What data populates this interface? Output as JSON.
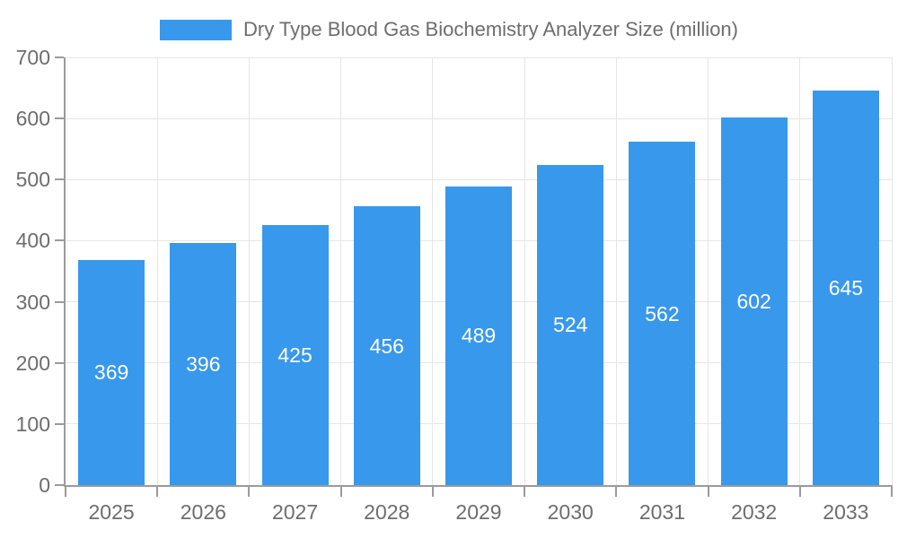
{
  "legend": {
    "items": [
      {
        "label": "Dry Type Blood Gas Biochemistry Analyzer Size (million)",
        "color": "#3898EC"
      }
    ]
  },
  "chart_data": {
    "type": "bar",
    "title": "Dry Type Blood Gas Biochemistry Analyzer Size (million)",
    "categories": [
      "2025",
      "2026",
      "2027",
      "2028",
      "2029",
      "2030",
      "2031",
      "2032",
      "2033"
    ],
    "values": [
      369,
      396,
      425,
      456,
      489,
      524,
      562,
      602,
      645
    ],
    "series_name": "Dry Type Blood Gas Biochemistry Analyzer Size (million)",
    "xlabel": "",
    "ylabel": "",
    "ylim": [
      0,
      700
    ],
    "yticks": [
      0,
      100,
      200,
      300,
      400,
      500,
      600,
      700
    ],
    "grid": true,
    "legend_position": "top",
    "bar_color": "#3898EC",
    "bar_label_color": "#FFFFFF",
    "grid_color": "#E6E6E6",
    "axis_color": "#9B9B9B",
    "text_color": "#6D6D6D",
    "background_color": "#FFFFFF"
  }
}
